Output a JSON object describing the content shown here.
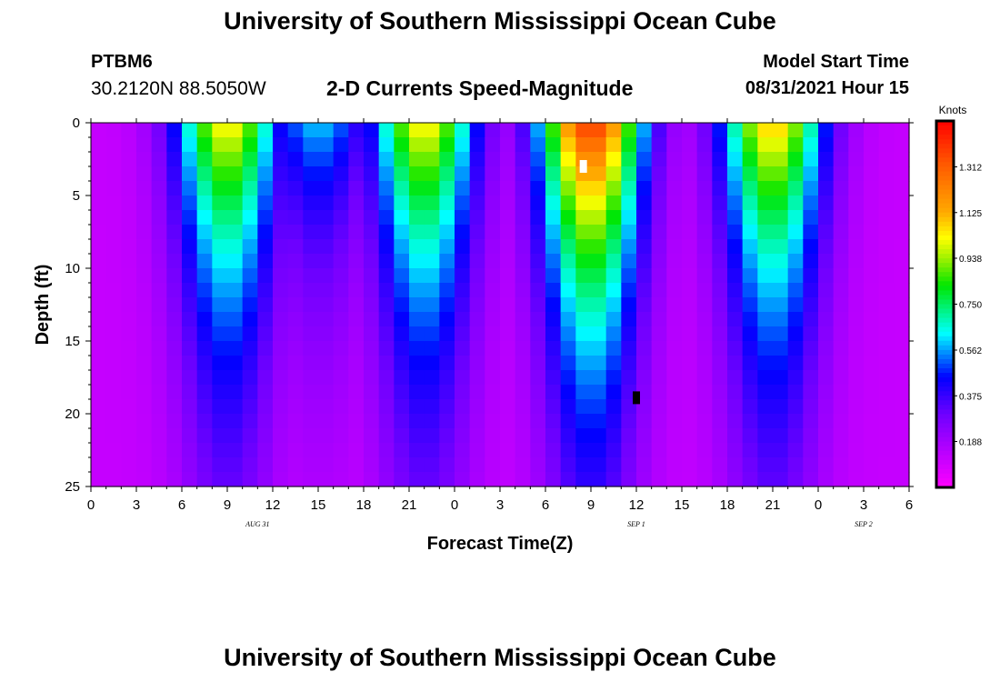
{
  "page_title_top": "University of Southern Mississippi Ocean Cube",
  "page_title_bottom": "University of Southern Mississippi Ocean Cube",
  "station": {
    "id": "PTBM6",
    "coords": "30.2120N  88.5050W"
  },
  "plot_title": "2-D Currents Speed-Magnitude",
  "model_start": {
    "label": "Model Start Time",
    "value": "08/31/2021 Hour 15"
  },
  "chart_data": {
    "type": "heatmap",
    "title": "2-D Currents Speed-Magnitude",
    "xlabel": "Forecast Time(Z)",
    "ylabel": "Depth (ft)",
    "x_tick_labels": [
      "0",
      "3",
      "6",
      "9",
      "12",
      "15",
      "18",
      "21",
      "0",
      "3",
      "6",
      "9",
      "12",
      "15",
      "18",
      "21",
      "0",
      "3",
      "6"
    ],
    "x_hours": [
      0,
      3,
      6,
      9,
      12,
      15,
      18,
      21,
      24,
      27,
      30,
      33,
      36,
      39,
      42,
      45,
      48,
      51,
      54
    ],
    "date_labels": [
      {
        "text": "AUG 31",
        "hour": 11
      },
      {
        "text": "SEP 1",
        "hour": 36
      },
      {
        "text": "SEP 2",
        "hour": 51
      }
    ],
    "xlim": [
      0,
      54
    ],
    "y_ticks": [
      0,
      5,
      10,
      15,
      20,
      25
    ],
    "ylim": [
      0,
      25
    ],
    "colorbar": {
      "label": "Knots",
      "ticks": [
        "1.312",
        "1.125",
        "0.938",
        "0.750",
        "0.562",
        "0.375",
        "0.188"
      ],
      "tick_values": [
        1.312,
        1.125,
        0.938,
        0.75,
        0.562,
        0.375,
        0.188
      ],
      "range": [
        0,
        1.5
      ]
    },
    "surface_maxima_knots": [
      {
        "hour": 9,
        "speed": 1.05
      },
      {
        "hour": 15,
        "speed": 0.6
      },
      {
        "hour": 22,
        "speed": 1.05
      },
      {
        "hour": 33,
        "speed": 1.4
      },
      {
        "hour": 45,
        "speed": 1.1
      }
    ],
    "markers": [
      {
        "hour": 32.5,
        "depth": 3.0,
        "color": "#ffffff"
      },
      {
        "hour": 36,
        "depth": 18.9,
        "color": "#000000"
      }
    ]
  }
}
